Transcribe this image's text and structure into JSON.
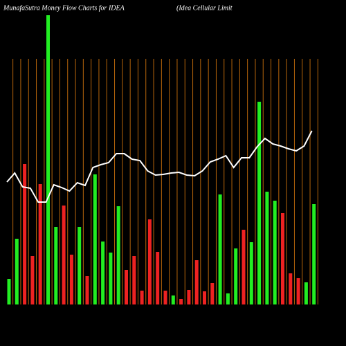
{
  "chart_data": {
    "type": "bar",
    "title": "MunafaSutra  Money Flow  Charts for IDEA",
    "subtitle": "(Idea  Cellular Limit",
    "categories": [
      null,
      null,
      null,
      null,
      null,
      null,
      null,
      null,
      null,
      null,
      null,
      null,
      null,
      null,
      null,
      null,
      null,
      null,
      null,
      null,
      null,
      null,
      null,
      null,
      null,
      null,
      null,
      null,
      null,
      null,
      null,
      null,
      null,
      null,
      null,
      null,
      null,
      null,
      null,
      null
    ],
    "values": [
      37,
      95,
      203,
      70,
      174,
      418,
      112,
      143,
      72,
      112,
      41,
      188,
      91,
      75,
      142,
      50,
      70,
      20,
      123,
      76,
      20,
      13,
      8,
      21,
      64,
      19,
      31,
      159,
      16,
      81,
      108,
      90,
      293,
      163,
      150,
      132,
      45,
      38,
      32,
      145
    ],
    "colors": [
      "#22ee22",
      "#22ee22",
      "#ee2222",
      "#ee2222",
      "#ee2222",
      "#22ee22",
      "#22ee22",
      "#ee2222",
      "#ee2222",
      "#22ee22",
      "#ee2222",
      "#22ee22",
      "#22ee22",
      "#22ee22",
      "#22ee22",
      "#ee2222",
      "#ee2222",
      "#ee2222",
      "#ee2222",
      "#ee2222",
      "#ee2222",
      "#22ee22",
      "#ee2222",
      "#ee2222",
      "#ee2222",
      "#ee2222",
      "#ee2222",
      "#22ee22",
      "#22ee22",
      "#22ee22",
      "#ee2222",
      "#22ee22",
      "#22ee22",
      "#22ee22",
      "#22ee22",
      "#ee2222",
      "#ee2222",
      "#ee2222",
      "#22ee22",
      "#22ee22"
    ],
    "line": {
      "color": "#ffffff",
      "values": [
        177,
        190,
        170,
        168,
        148,
        148,
        173,
        169,
        164,
        176,
        172,
        198,
        202,
        205,
        218,
        218,
        210,
        208,
        193,
        187,
        188,
        190,
        191,
        187,
        186,
        193,
        206,
        210,
        215,
        198,
        212,
        212,
        228,
        240,
        232,
        229,
        225,
        222,
        229,
        251
      ]
    },
    "ylim": [
      0,
      420
    ],
    "grid_color": "#b8660b"
  }
}
